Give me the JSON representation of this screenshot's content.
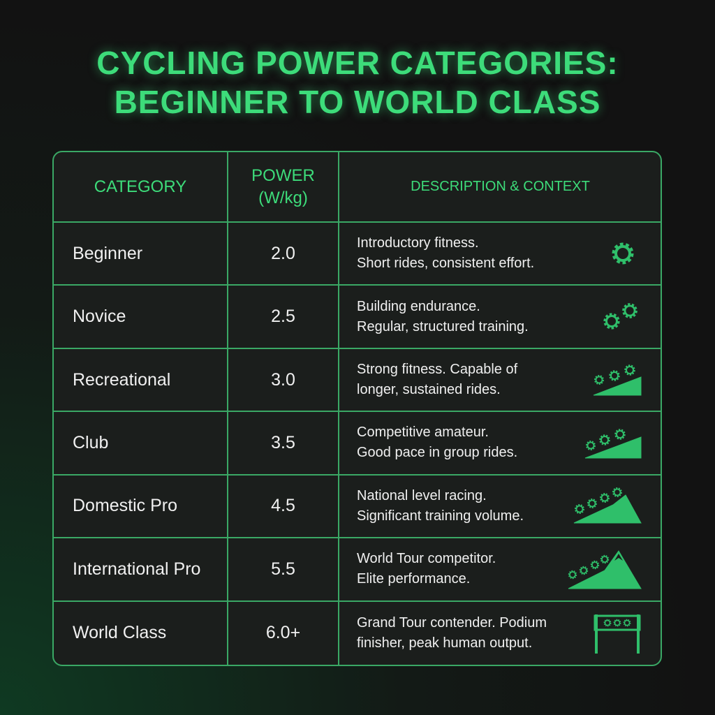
{
  "header": {
    "title_lines": [
      "CYCLING POWER CATEGORIES:",
      "BEGINNER TO WORLD CLASS"
    ]
  },
  "table": {
    "columns": [
      "CATEGORY",
      "POWER (W/kg)",
      "DESCRIPTION & CONTEXT"
    ],
    "rows": [
      {
        "category": "Beginner",
        "power": "2.0",
        "description": [
          "Introductory fitness.",
          "Short rides, consistent effort."
        ]
      },
      {
        "category": "Novice",
        "power": "2.5",
        "description": [
          "Building endurance.",
          "Regular, structured training."
        ]
      },
      {
        "category": "Recreational",
        "power": "3.0",
        "description": [
          "Strong fitness. Capable of",
          "longer, sustained rides."
        ]
      },
      {
        "category": "Club",
        "power": "3.5",
        "description": [
          "Competitive amateur.",
          "Good pace in group rides."
        ]
      },
      {
        "category": "Domestic Pro",
        "power": "4.5",
        "description": [
          "National level racing.",
          "Significant training volume."
        ]
      },
      {
        "category": "International Pro",
        "power": "5.5",
        "description": [
          "World Tour competitor.",
          "Elite performance."
        ]
      },
      {
        "category": "World Class",
        "power": "6.0+",
        "description": [
          "Grand Tour contender. Podium",
          "finisher, peak human output."
        ]
      }
    ]
  }
}
